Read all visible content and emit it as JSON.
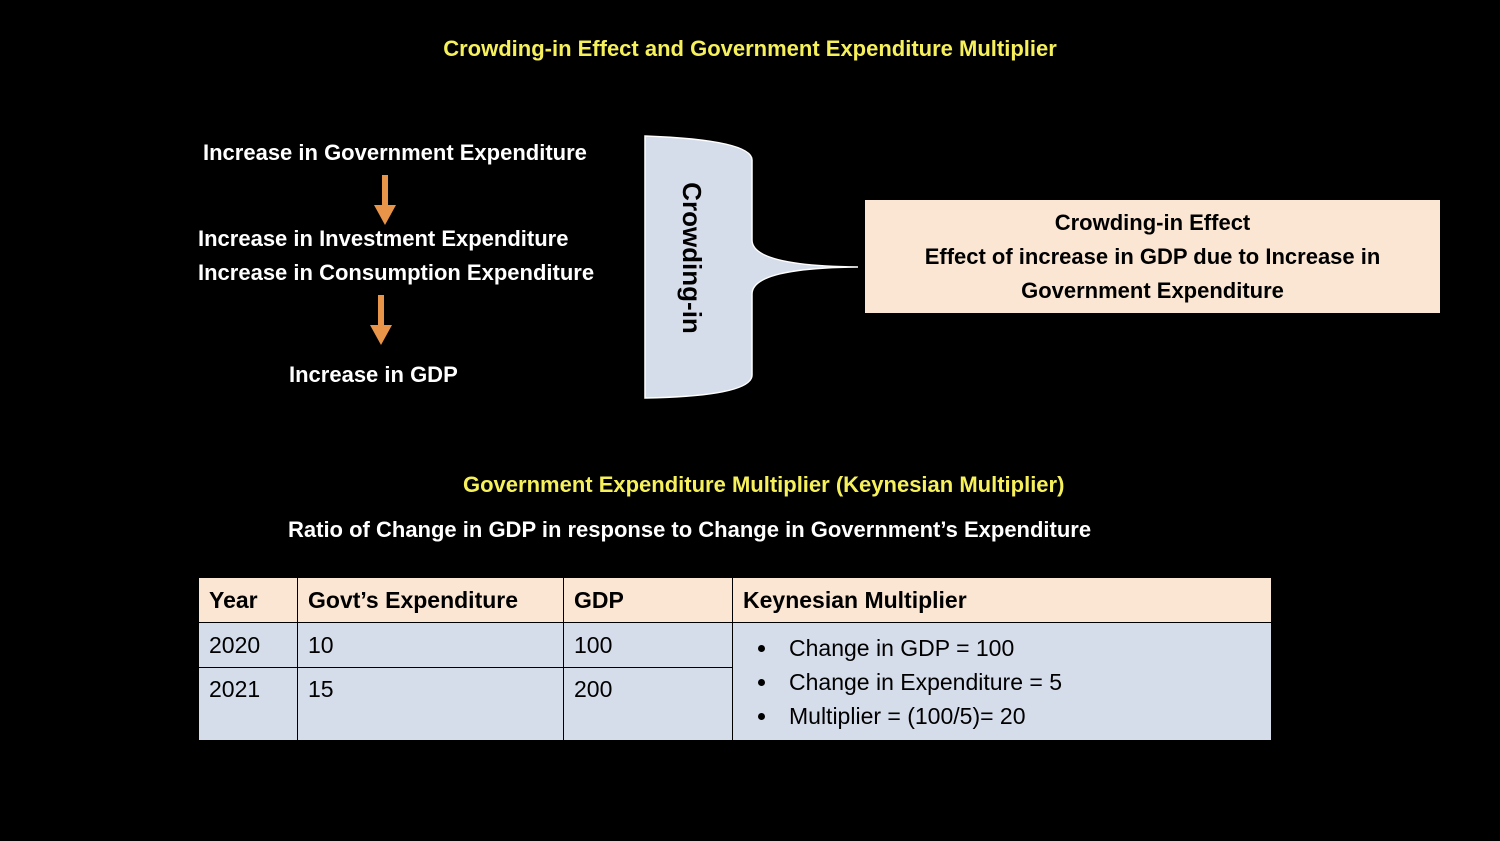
{
  "title": "Crowding-in Effect and Government Expenditure Multiplier",
  "flow": {
    "steps": [
      [
        "Increase in Government Expenditure"
      ],
      [
        "Increase in Investment Expenditure",
        "Increase in Consumption Expenditure"
      ],
      [
        "Increase in GDP"
      ]
    ],
    "brace_label": "Crowding-in"
  },
  "callout": {
    "title": "Crowding-in Effect",
    "text": "Effect of increase in GDP due to Increase in Government Expenditure"
  },
  "multiplier": {
    "title": "Government Expenditure Multiplier (Keynesian Multiplier)",
    "definition": "Ratio of Change in GDP in response to Change in Government’s Expenditure"
  },
  "table": {
    "header": [
      "Year",
      "Govt’s Expenditure",
      "GDP",
      "Keynesian Multiplier"
    ],
    "rows": [
      [
        "2020",
        "10",
        "100"
      ],
      [
        "2021",
        "15",
        "200"
      ]
    ],
    "notes": [
      "Change in GDP = 100",
      "Change in Expenditure = 5",
      "Multiplier = (100/5)= 20"
    ]
  }
}
